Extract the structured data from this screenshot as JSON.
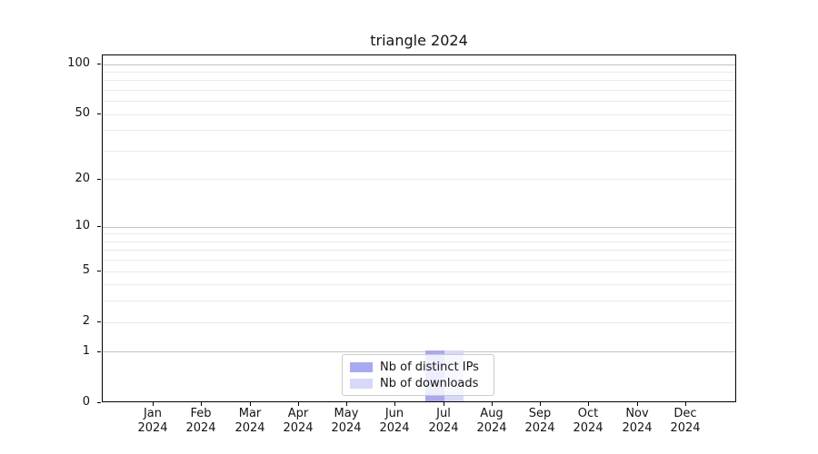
{
  "title": "triangle 2024",
  "accent_colors": {
    "distinct_ips": "#a9a9ef",
    "downloads": "#d8d8f8",
    "major_grid": "#c2c2c2",
    "minor_grid": "#eaeaea"
  },
  "chart_data": {
    "type": "bar",
    "title": "triangle 2024",
    "xlabel": "",
    "ylabel": "",
    "year_label": "2024",
    "categories": [
      "Jan",
      "Feb",
      "Mar",
      "Apr",
      "May",
      "Jun",
      "Jul",
      "Aug",
      "Sep",
      "Oct",
      "Nov",
      "Dec"
    ],
    "series": [
      {
        "name": "Nb of distinct IPs",
        "color": "#a9a9ef",
        "values": [
          0,
          0,
          0,
          0,
          0,
          0,
          1,
          0,
          0,
          0,
          0,
          0
        ]
      },
      {
        "name": "Nb of downloads",
        "color": "#d8d8f8",
        "values": [
          0,
          0,
          0,
          0,
          0,
          0,
          1,
          0,
          0,
          0,
          0,
          0
        ]
      }
    ],
    "y_ticks": [
      0,
      1,
      2,
      5,
      10,
      20,
      50,
      100
    ],
    "y_major_gridlines": [
      1,
      10,
      100
    ],
    "y_minor_gridlines": [
      2,
      3,
      4,
      5,
      6,
      7,
      8,
      9,
      20,
      30,
      40,
      50,
      60,
      70,
      80,
      90
    ],
    "scale": "log1p",
    "ylim": [
      0,
      100
    ],
    "grid": "horizontal",
    "legend_position": "lower center"
  }
}
